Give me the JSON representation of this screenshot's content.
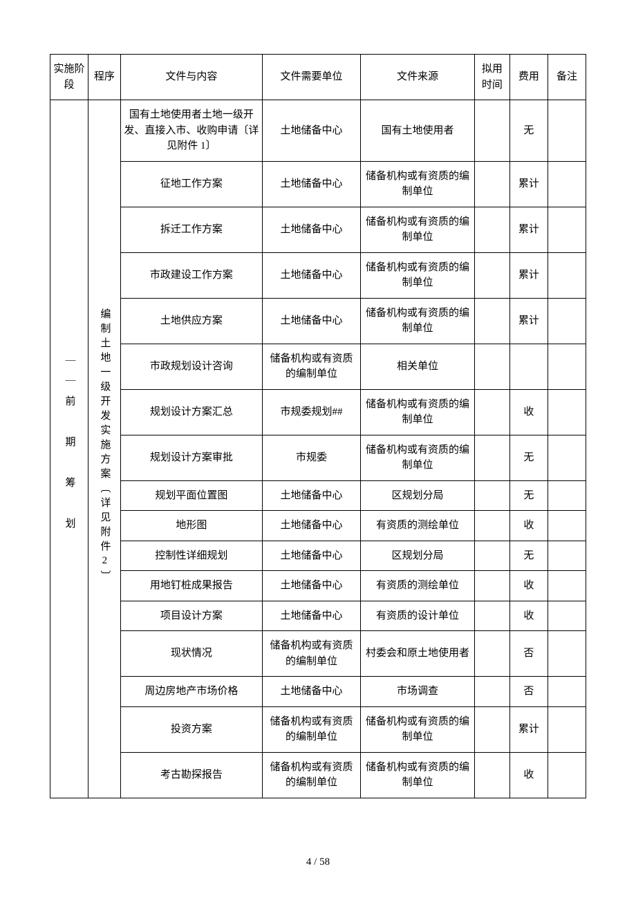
{
  "headers": {
    "stage": "实施阶段",
    "procedure": "程序",
    "document": "文件与内容",
    "needUnit": "文件需要单位",
    "source": "文件来源",
    "time": "拟用时间",
    "fee": "费用",
    "note": "备注"
  },
  "stageLabel": "｜｜前 期 筹 划",
  "procedureLabel": "编制土地一级开发实施方案〔详见附件2〕",
  "rows": [
    {
      "doc": "国有土地使用者土地一级开发、直接入市、收购申请〔详见附件 1〕",
      "unit": "土地储备中心",
      "src": "国有土地使用者",
      "time": "",
      "fee": "无",
      "note": ""
    },
    {
      "doc": "征地工作方案",
      "unit": "土地储备中心",
      "src": "储备机构或有资质的编制单位",
      "time": "",
      "fee": "累计",
      "note": ""
    },
    {
      "doc": "拆迁工作方案",
      "unit": "土地储备中心",
      "src": "储备机构或有资质的编制单位",
      "time": "",
      "fee": "累计",
      "note": ""
    },
    {
      "doc": "市政建设工作方案",
      "unit": "土地储备中心",
      "src": "储备机构或有资质的编制单位",
      "time": "",
      "fee": "累计",
      "note": ""
    },
    {
      "doc": "土地供应方案",
      "unit": "土地储备中心",
      "src": "储备机构或有资质的编制单位",
      "time": "",
      "fee": "累计",
      "note": ""
    },
    {
      "doc": "市政规划设计咨询",
      "unit": "储备机构或有资质的编制单位",
      "src": "相关单位",
      "time": "",
      "fee": "",
      "note": ""
    },
    {
      "doc": "规划设计方案汇总",
      "unit": "市规委规划##",
      "src": "储备机构或有资质的编制单位",
      "time": "",
      "fee": "收",
      "note": ""
    },
    {
      "doc": "规划设计方案审批",
      "unit": "市规委",
      "src": "储备机构或有资质的编制单位",
      "time": "",
      "fee": "无",
      "note": ""
    },
    {
      "doc": "规划平面位置图",
      "unit": "土地储备中心",
      "src": "区规划分局",
      "time": "",
      "fee": "无",
      "note": ""
    },
    {
      "doc": "地形图",
      "unit": "土地储备中心",
      "src": "有资质的测绘单位",
      "time": "",
      "fee": "收",
      "note": ""
    },
    {
      "doc": "控制性详细规划",
      "unit": "土地储备中心",
      "src": "区规划分局",
      "time": "",
      "fee": "无",
      "note": ""
    },
    {
      "doc": "用地钉桩成果报告",
      "unit": "土地储备中心",
      "src": "有资质的测绘单位",
      "time": "",
      "fee": "收",
      "note": ""
    },
    {
      "doc": "项目设计方案",
      "unit": "土地储备中心",
      "src": "有资质的设计单位",
      "time": "",
      "fee": "收",
      "note": ""
    },
    {
      "doc": "现状情况",
      "unit": "储备机构或有资质的编制单位",
      "src": "村委会和原土地使用者",
      "time": "",
      "fee": "否",
      "note": ""
    },
    {
      "doc": "周边房地产市场价格",
      "unit": "土地储备中心",
      "src": "市场调查",
      "time": "",
      "fee": "否",
      "note": ""
    },
    {
      "doc": "投资方案",
      "unit": "储备机构或有资质的编制单位",
      "src": "储备机构或有资质的编制单位",
      "time": "",
      "fee": "累计",
      "note": ""
    },
    {
      "doc": "考古勘探报告",
      "unit": "储备机构或有资质的编制单位",
      "src": "储备机构或有资质的编制单位",
      "time": "",
      "fee": "收",
      "note": ""
    }
  ],
  "footer": "4  / 58",
  "colors": {
    "border": "#000000",
    "text": "#000000",
    "background": "#ffffff"
  },
  "fontSize": 15
}
